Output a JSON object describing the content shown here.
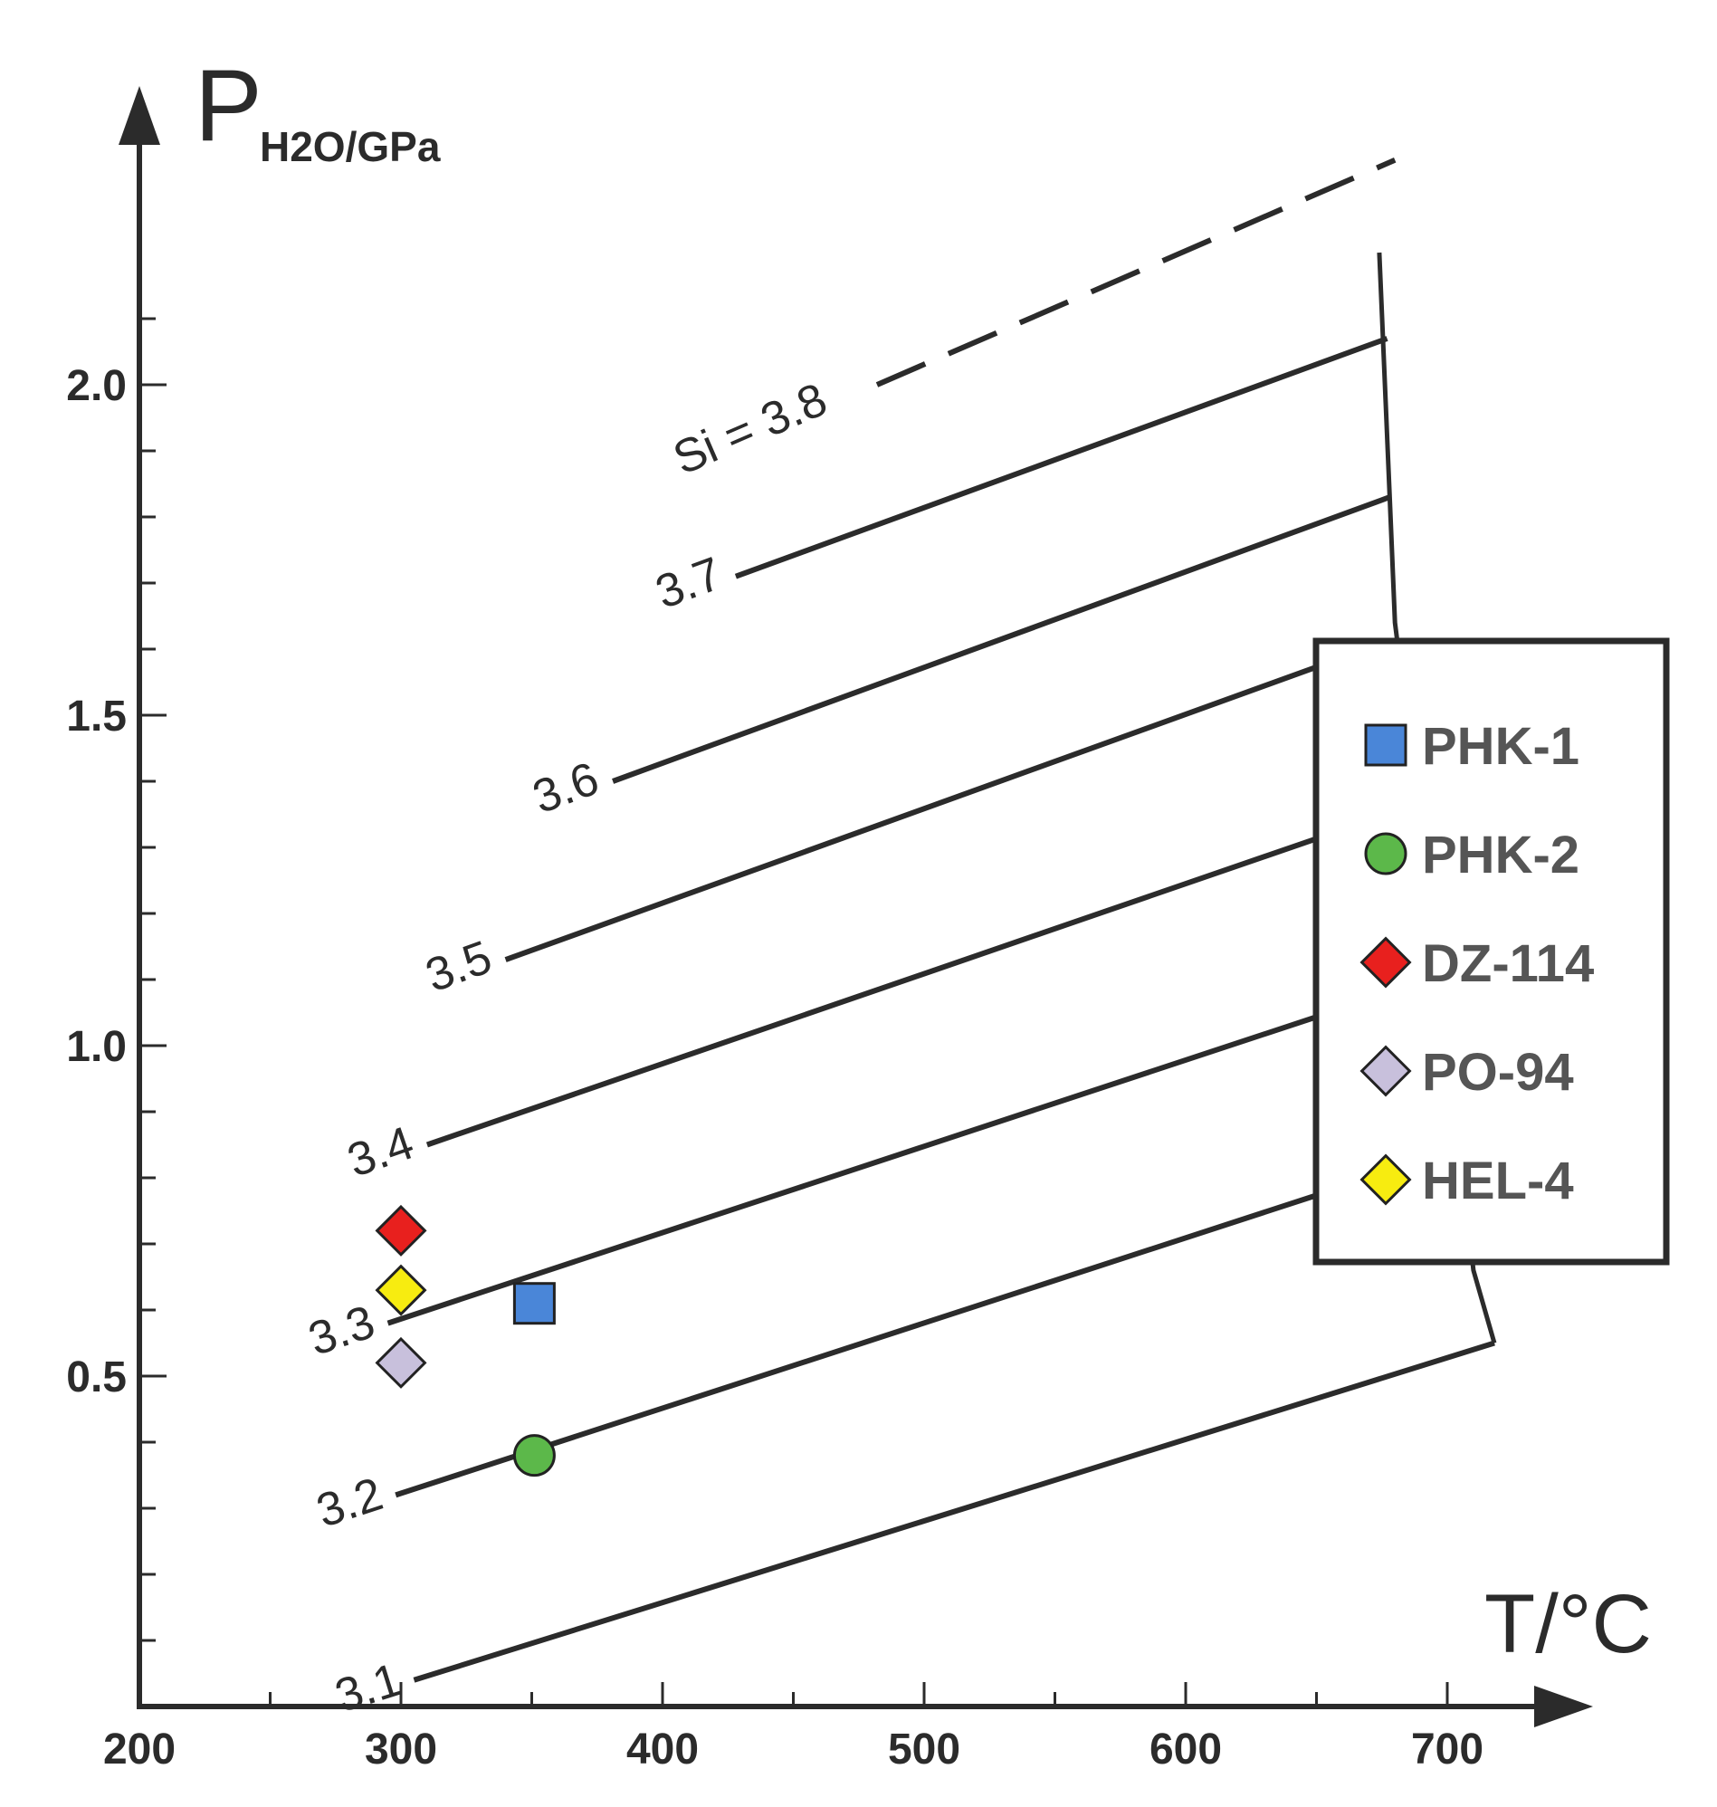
{
  "chart_data": {
    "type": "line",
    "xlabel": "T/°C",
    "ylabel_main": "P",
    "ylabel_sub": "H2O/GPa",
    "xlim": [
      200,
      730
    ],
    "ylim": [
      0,
      2.45
    ],
    "x_ticks": [
      200,
      300,
      400,
      500,
      600,
      700
    ],
    "x_tick_labels": [
      "200",
      "300",
      "400",
      "500",
      "600",
      "700"
    ],
    "y_ticks": [
      0.5,
      1.0,
      1.5,
      2.0
    ],
    "y_tick_labels": [
      "0.5",
      "1.0",
      "1.5",
      "2.0"
    ],
    "isopleths": [
      {
        "name": "Si = 3.8",
        "label": "Si = 3.8",
        "dashed": true,
        "x": [
          482,
          680
        ],
        "y": [
          2.0,
          2.34
        ]
      },
      {
        "name": "3.7",
        "label": "3.7",
        "dashed": false,
        "x": [
          428,
          677
        ],
        "y": [
          1.71,
          2.07
        ]
      },
      {
        "name": "3.6",
        "label": "3.6",
        "dashed": false,
        "x": [
          381,
          678
        ],
        "y": [
          1.4,
          1.83
        ]
      },
      {
        "name": "3.5",
        "label": "3.5",
        "dashed": false,
        "x": [
          340,
          655
        ],
        "y": [
          1.13,
          1.58
        ]
      },
      {
        "name": "3.4",
        "label": "3.4",
        "dashed": false,
        "x": [
          310,
          655
        ],
        "y": [
          0.85,
          1.32
        ]
      },
      {
        "name": "3.3",
        "label": "3.3",
        "dashed": false,
        "x": [
          295,
          655
        ],
        "y": [
          0.58,
          1.05
        ]
      },
      {
        "name": "3.2",
        "label": "3.2",
        "dashed": false,
        "x": [
          298,
          655
        ],
        "y": [
          0.32,
          0.78
        ]
      },
      {
        "name": "3.1",
        "label": "3.1",
        "dashed": false,
        "x": [
          305,
          718
        ],
        "y": [
          0.04,
          0.55
        ]
      }
    ],
    "boundary": {
      "x": [
        674,
        678,
        680,
        701,
        710,
        718
      ],
      "y": [
        2.2,
        1.83,
        1.64,
        0.98,
        0.66,
        0.55
      ]
    },
    "series": [
      {
        "name": "PHK-1",
        "marker": "square",
        "color": "#4a86d8",
        "x": 351,
        "y": 0.61
      },
      {
        "name": "PHK-2",
        "marker": "circle",
        "color": "#5cb84a",
        "x": 351,
        "y": 0.38
      },
      {
        "name": "DZ-114",
        "marker": "diamond",
        "color": "#e8201e",
        "x": 300,
        "y": 0.72
      },
      {
        "name": "PO-94",
        "marker": "diamond",
        "color": "#c8c0dc",
        "x": 300,
        "y": 0.52
      },
      {
        "name": "HEL-4",
        "marker": "diamond",
        "color": "#f7ec10",
        "x": 300,
        "y": 0.63
      }
    ],
    "legend_position": "right"
  }
}
